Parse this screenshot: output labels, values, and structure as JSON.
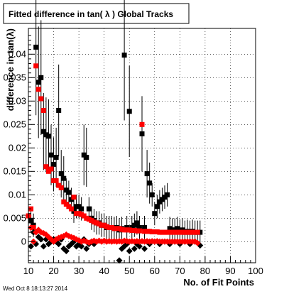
{
  "title": "Fitted difference in tan( λ )  Global Tracks",
  "timestamp": "Wed Oct  8 18:13:27 2014",
  "chart_data": {
    "type": "scatter",
    "title": "Fitted difference in tan( λ )  Global Tracks",
    "xlabel": "No. of Fit Points",
    "ylabel": "difference in tan(λ)",
    "xlim": [
      10,
      100
    ],
    "ylim": [
      -0.0045,
      0.0455
    ],
    "x_ticks": [
      10,
      20,
      30,
      40,
      50,
      60,
      70,
      80,
      90,
      100
    ],
    "x_tick_labels": [
      "10",
      "20",
      "30",
      "40",
      "50",
      "60",
      "70",
      "80",
      "90",
      "100"
    ],
    "y_ticks": [
      0,
      0.005,
      0.01,
      0.015,
      0.02,
      0.025,
      0.03,
      0.035,
      0.04
    ],
    "y_tick_labels": [
      "0",
      "0.005",
      "0.01",
      "0.015",
      "0.02",
      "0.025",
      "0.03",
      "0.035",
      "0.04"
    ],
    "grid": true,
    "colors": {
      "black": "#000000",
      "red": "#ff0000"
    },
    "series": [
      {
        "color": "#000000",
        "marker": "square",
        "points": [
          [
            11,
            0.0045
          ],
          [
            12,
            0.0035
          ],
          [
            13,
            0.0415
          ],
          [
            14,
            0.034
          ],
          [
            15,
            0.035
          ],
          [
            16,
            0.0235
          ],
          [
            17,
            0.0228
          ],
          [
            18,
            0.0225
          ],
          [
            19,
            0.0185
          ],
          [
            20,
            0.0165
          ],
          [
            21,
            0.018
          ],
          [
            22,
            0.028
          ],
          [
            23,
            0.0145
          ],
          [
            24,
            0.0135
          ],
          [
            25,
            0.011
          ],
          [
            26,
            0.0105
          ],
          [
            27,
            0.009
          ],
          [
            28,
            0.0065
          ],
          [
            29,
            0.0075
          ],
          [
            30,
            0.0075
          ],
          [
            31,
            0.007
          ],
          [
            32,
            0.0185
          ],
          [
            33,
            0.018
          ],
          [
            34,
            0.007
          ],
          [
            35,
            0.005
          ],
          [
            36,
            0.0045
          ],
          [
            37,
            0.004
          ],
          [
            38,
            0.004
          ],
          [
            39,
            0.0035
          ],
          [
            40,
            0.0035
          ],
          [
            41,
            0.003
          ],
          [
            42,
            0.003
          ],
          [
            43,
            0.003
          ],
          [
            44,
            0.0028
          ],
          [
            45,
            0.003
          ],
          [
            46,
            0.0025
          ],
          [
            47,
            0.0028
          ],
          [
            48,
            0.0398
          ],
          [
            49,
            0.003
          ],
          [
            50,
            0.0278
          ],
          [
            51,
            0.003
          ],
          [
            52,
            0.0035
          ],
          [
            53,
            0.004
          ],
          [
            54,
            0.003
          ],
          [
            55,
            0.023
          ],
          [
            56,
            0.003
          ],
          [
            57,
            0.0145
          ],
          [
            58,
            0.0125
          ],
          [
            59,
            0.01
          ],
          [
            60,
            0.006
          ],
          [
            61,
            0.0075
          ],
          [
            62,
            0.0085
          ],
          [
            63,
            0.009
          ],
          [
            64,
            0.0095
          ],
          [
            65,
            0.01
          ],
          [
            66,
            0.0028
          ],
          [
            67,
            0.0025
          ],
          [
            68,
            0.0025
          ],
          [
            69,
            0.0028
          ],
          [
            70,
            0.0022
          ],
          [
            71,
            0.0025
          ],
          [
            72,
            0.002
          ],
          [
            73,
            0.0022
          ],
          [
            74,
            0.002
          ],
          [
            75,
            0.0022
          ],
          [
            76,
            0.002
          ],
          [
            77,
            0.002
          ],
          [
            78,
            0.002
          ]
        ]
      },
      {
        "color": "#ff0000",
        "marker": "square",
        "points": [
          [
            10,
            0.0055
          ],
          [
            11,
            0.007
          ],
          [
            12,
            0.003
          ],
          [
            13,
            0.0375
          ],
          [
            14,
            0.0325
          ],
          [
            15,
            0.0305
          ],
          [
            16,
            0.028
          ],
          [
            17,
            0.016
          ],
          [
            18,
            0.015
          ],
          [
            19,
            0.0155
          ],
          [
            20,
            0.013
          ],
          [
            21,
            0.013
          ],
          [
            22,
            0.012
          ],
          [
            23,
            0.0115
          ],
          [
            24,
            0.0085
          ],
          [
            25,
            0.008
          ],
          [
            26,
            0.0075
          ],
          [
            27,
            0.007
          ],
          [
            28,
            0.0095
          ],
          [
            29,
            0.006
          ],
          [
            30,
            0.006
          ],
          [
            31,
            0.0058
          ],
          [
            32,
            0.0055
          ],
          [
            33,
            0.005
          ],
          [
            34,
            0.0048
          ],
          [
            35,
            0.0045
          ],
          [
            36,
            0.0042
          ],
          [
            37,
            0.004
          ],
          [
            38,
            0.0038
          ],
          [
            39,
            0.0035
          ],
          [
            40,
            0.0035
          ],
          [
            41,
            0.0032
          ],
          [
            42,
            0.003
          ],
          [
            43,
            0.003
          ],
          [
            44,
            0.0028
          ],
          [
            45,
            0.0028
          ],
          [
            46,
            0.0028
          ],
          [
            47,
            0.0026
          ],
          [
            48,
            0.0025
          ],
          [
            49,
            0.0025
          ],
          [
            50,
            0.0025
          ],
          [
            51,
            0.0024
          ],
          [
            52,
            0.0024
          ],
          [
            53,
            0.0023
          ],
          [
            54,
            0.0023
          ],
          [
            55,
            0.025
          ],
          [
            56,
            0.0022
          ],
          [
            57,
            0.0022
          ],
          [
            58,
            0.0022
          ],
          [
            59,
            0.0021
          ],
          [
            60,
            0.0021
          ],
          [
            61,
            0.0021
          ],
          [
            62,
            0.002
          ],
          [
            63,
            0.002
          ],
          [
            64,
            0.002
          ],
          [
            65,
            0.002
          ],
          [
            66,
            0.002
          ],
          [
            67,
            0.002
          ],
          [
            68,
            0.002
          ],
          [
            69,
            0.002
          ],
          [
            70,
            0.002
          ],
          [
            71,
            0.002
          ],
          [
            72,
            0.002
          ],
          [
            73,
            0.002
          ],
          [
            74,
            0.002
          ],
          [
            75,
            0.002
          ],
          [
            76,
            0.002
          ],
          [
            77,
            0.002
          ]
        ]
      },
      {
        "color": "#000000",
        "marker": "diamond",
        "points": [
          [
            11,
            -0.001
          ],
          [
            12,
            0.002
          ],
          [
            13,
            -0.0005
          ],
          [
            14,
            0.001
          ],
          [
            15,
            0.0005
          ],
          [
            16,
            -0.001
          ],
          [
            17,
            0.0005
          ],
          [
            18,
            -0.0005
          ],
          [
            19,
            0.0
          ],
          [
            20,
            0.0005
          ],
          [
            21,
            0.0
          ],
          [
            22,
            -0.0005
          ],
          [
            23,
            0.0005
          ],
          [
            24,
            -0.0015
          ],
          [
            25,
            -0.002
          ],
          [
            26,
            -0.001
          ],
          [
            27,
            -0.0005
          ],
          [
            28,
            0.0
          ],
          [
            29,
            -0.001
          ],
          [
            30,
            -0.0005
          ],
          [
            31,
            -0.001
          ],
          [
            32,
            0.0005
          ],
          [
            33,
            -0.0015
          ],
          [
            34,
            -0.0005
          ],
          [
            35,
            0.0
          ],
          [
            36,
            -0.0005
          ],
          [
            46,
            -0.004
          ],
          [
            47,
            -0.0015
          ],
          [
            48,
            -0.001
          ],
          [
            49,
            -0.0005
          ],
          [
            50,
            -0.002
          ],
          [
            52,
            -0.0015
          ],
          [
            53,
            -0.0005
          ],
          [
            54,
            -0.001
          ],
          [
            56,
            -0.0015
          ],
          [
            57,
            0.0
          ],
          [
            58,
            -0.0005
          ],
          [
            60,
            0.0
          ],
          [
            62,
            -0.0005
          ],
          [
            64,
            0.0
          ],
          [
            66,
            -0.0005
          ],
          [
            68,
            0.0
          ],
          [
            70,
            -0.0005
          ],
          [
            72,
            0.0
          ],
          [
            74,
            -0.0005
          ],
          [
            76,
            0.0
          ],
          [
            78,
            -0.0008
          ]
        ]
      },
      {
        "color": "#ff0000",
        "marker": "diamond",
        "points": [
          [
            10,
            0.0055
          ],
          [
            11,
            0.003
          ],
          [
            12,
            0.0
          ],
          [
            13,
            0.002
          ],
          [
            14,
            0.0025
          ],
          [
            15,
            0.002
          ],
          [
            16,
            0.0018
          ],
          [
            17,
            0.0015
          ],
          [
            18,
            0.001
          ],
          [
            19,
            0.0005
          ],
          [
            20,
            0.0
          ],
          [
            21,
            0.0005
          ],
          [
            22,
            0.0008
          ],
          [
            23,
            0.001
          ],
          [
            24,
            0.0012
          ],
          [
            25,
            0.0015
          ],
          [
            26,
            0.0012
          ],
          [
            27,
            0.001
          ],
          [
            28,
            0.0008
          ],
          [
            29,
            0.0005
          ],
          [
            30,
            0.0003
          ],
          [
            31,
            0.0
          ],
          [
            32,
            0.0002
          ],
          [
            33,
            0.0
          ],
          [
            34,
            -0.0002
          ],
          [
            35,
            0.0
          ],
          [
            36,
            0.0002
          ],
          [
            37,
            0.0
          ],
          [
            38,
            0.0002
          ],
          [
            39,
            0.0
          ],
          [
            40,
            0.0002
          ],
          [
            41,
            0.0
          ],
          [
            42,
            0.0001
          ],
          [
            43,
            0.0
          ],
          [
            44,
            0.0001
          ],
          [
            45,
            0.0
          ],
          [
            46,
            0.0001
          ],
          [
            47,
            0.0
          ],
          [
            48,
            0.0002
          ],
          [
            49,
            0.0001
          ],
          [
            50,
            0.0
          ],
          [
            51,
            0.0001
          ],
          [
            52,
            0.0
          ],
          [
            53,
            0.0001
          ],
          [
            54,
            0.0
          ],
          [
            55,
            0.0001
          ],
          [
            56,
            0.0
          ],
          [
            57,
            0.0001
          ],
          [
            58,
            0.0
          ],
          [
            59,
            0.0001
          ],
          [
            60,
            0.0
          ],
          [
            61,
            0.0001
          ],
          [
            62,
            0.0
          ],
          [
            63,
            0.0
          ],
          [
            64,
            0.0
          ],
          [
            65,
            0.0
          ],
          [
            66,
            0.0
          ],
          [
            67,
            0.0
          ],
          [
            68,
            0.0
          ],
          [
            69,
            0.0
          ],
          [
            70,
            0.0
          ],
          [
            71,
            0.0
          ],
          [
            72,
            0.0
          ],
          [
            73,
            0.0
          ],
          [
            74,
            0.0
          ],
          [
            75,
            0.0
          ],
          [
            76,
            0.0
          ],
          [
            77,
            -0.0003
          ]
        ]
      }
    ]
  }
}
